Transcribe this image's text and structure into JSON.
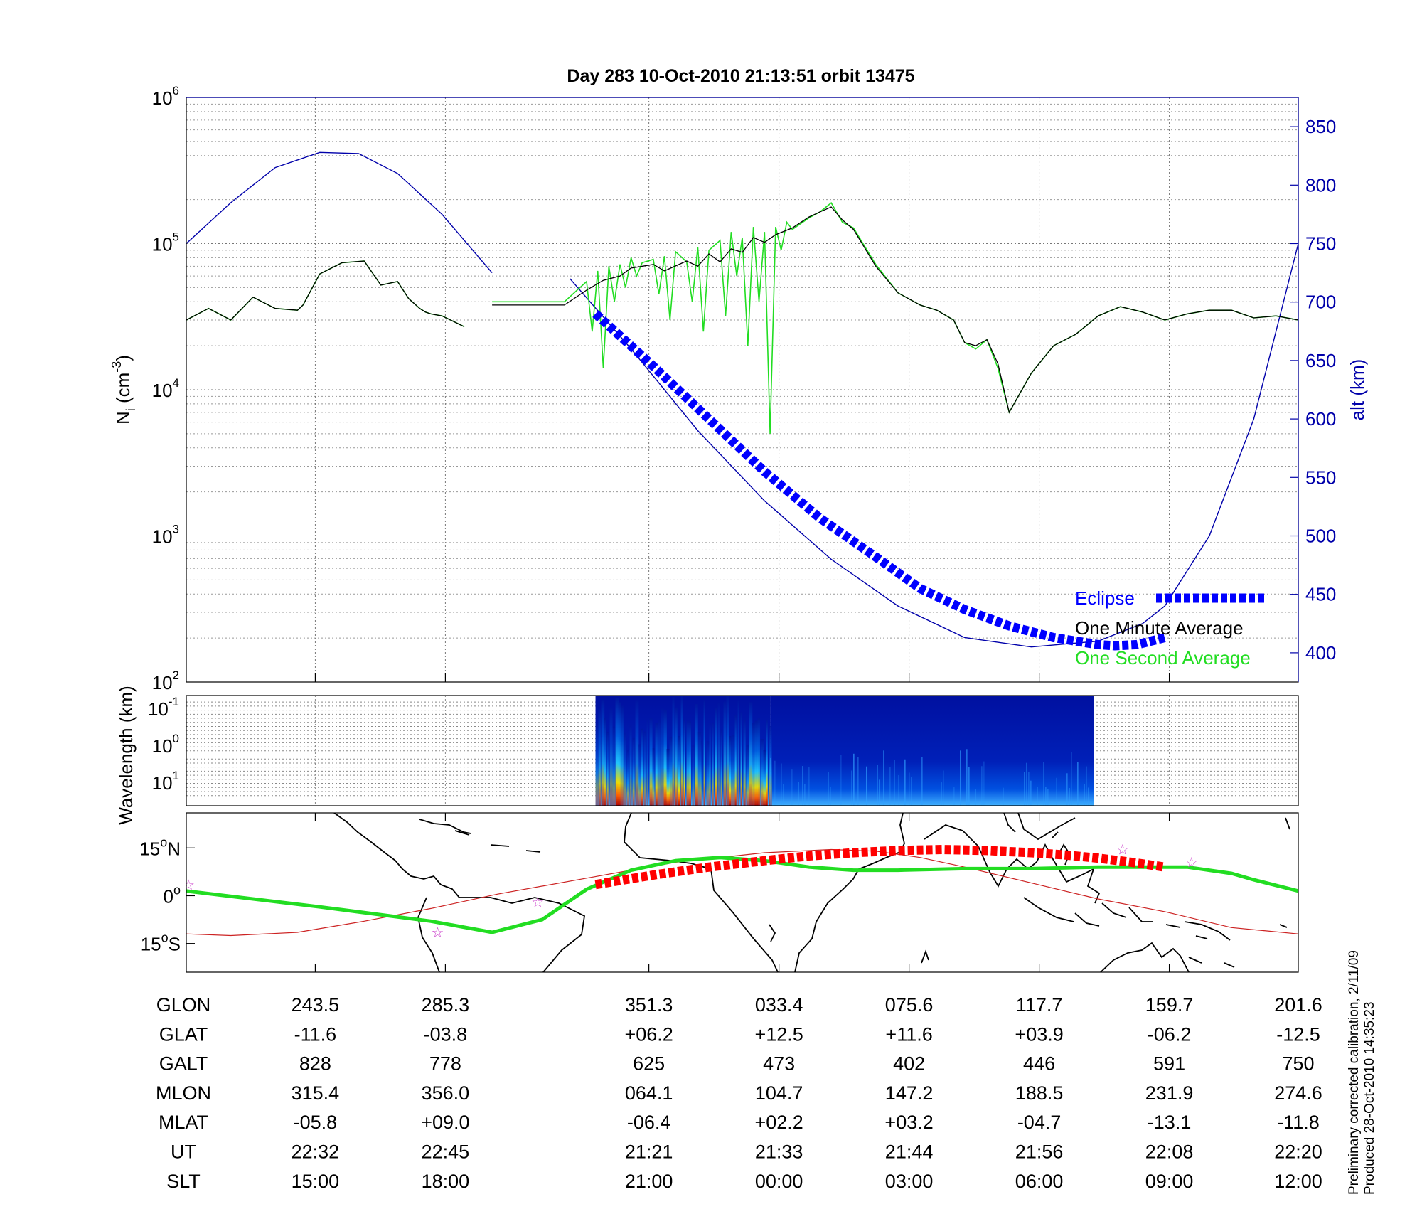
{
  "title": "Day 283  10-Oct-2010 21:13:51   orbit 13475",
  "footer": {
    "line1": "Preliminary corrected calibration, 2/11/09",
    "line2": "Produced 28-Oct-2010 14:35:23"
  },
  "colors": {
    "altitude": "#0000aa",
    "eclipse": "#0000ff",
    "one_minute": "#000000",
    "one_second": "#22dd22",
    "track_eclipse": "#ff0000",
    "star": "#cc44cc"
  },
  "chart_data": [
    {
      "type": "line",
      "panel": "density",
      "ylabel": "N_i (cm^-3)",
      "ylabel_base": "N",
      "ylabel_sub": "i",
      "ylabel_unit": " (cm",
      "ylabel_sup": "-3",
      "ylabel_close": ")",
      "y_scale": "log",
      "ylim": [
        100,
        1000000
      ],
      "y_ticks": [
        {
          "value": 100,
          "base": "10",
          "exp": "2"
        },
        {
          "value": 1000,
          "base": "10",
          "exp": "3"
        },
        {
          "value": 10000,
          "base": "10",
          "exp": "4"
        },
        {
          "value": 100000,
          "base": "10",
          "exp": "5"
        },
        {
          "value": 1000000,
          "base": "10",
          "exp": "6"
        }
      ],
      "y2label": "alt (km)",
      "y2lim": [
        375,
        875
      ],
      "y2_ticks": [
        "400",
        "450",
        "500",
        "550",
        "600",
        "650",
        "700",
        "750",
        "800",
        "850"
      ],
      "grid": true,
      "legend_position": "bottom-right",
      "series": [
        {
          "name": "Eclipse",
          "style": "dashed-thick",
          "x": [
            0.368,
            0.42,
            0.47,
            0.52,
            0.57,
            0.62,
            0.66,
            0.7,
            0.74,
            0.78,
            0.82,
            0.835,
            0.855,
            0.88
          ],
          "y": [
            690,
            645,
            600,
            555,
            515,
            482,
            455,
            437,
            423,
            413,
            407,
            406,
            407,
            413
          ]
        },
        {
          "name": "One Minute Average",
          "x": [
            0.0,
            0.02,
            0.04,
            0.06,
            0.08,
            0.1,
            0.105,
            0.12,
            0.14,
            0.16,
            0.175,
            0.19,
            0.2,
            0.21,
            0.215,
            0.22,
            0.23,
            0.25,
            0.265,
            0.275,
            0.34,
            0.36,
            0.375,
            0.39,
            0.4,
            0.42,
            0.43,
            0.45,
            0.46,
            0.47,
            0.48,
            0.49,
            0.5,
            0.51,
            0.52,
            0.53,
            0.545,
            0.56,
            0.57,
            0.58,
            0.59,
            0.6,
            0.62,
            0.64,
            0.66,
            0.675,
            0.69,
            0.7,
            0.71,
            0.72,
            0.73,
            0.74,
            0.76,
            0.78,
            0.8,
            0.82,
            0.84,
            0.86,
            0.88,
            0.9,
            0.92,
            0.94,
            0.96,
            0.98,
            1.0
          ],
          "y": [
            30000,
            36000,
            30000,
            43000,
            36000,
            35000,
            38000,
            62000,
            74000,
            76000,
            52000,
            55000,
            42000,
            36000,
            34000,
            33000,
            32000,
            27000,
            null,
            38000,
            38000,
            48000,
            56000,
            60000,
            68000,
            72000,
            65000,
            76000,
            70000,
            85000,
            75000,
            92000,
            87000,
            110000,
            102000,
            115000,
            128000,
            152000,
            165000,
            178000,
            145000,
            125000,
            70000,
            46000,
            38000,
            35000,
            30000,
            21000,
            20000,
            22000,
            15000,
            7000,
            13000,
            20000,
            24000,
            32000,
            37000,
            34000,
            30000,
            33000,
            35000,
            35000,
            31000,
            32000,
            30000
          ]
        },
        {
          "name": "One Second Average",
          "x": [
            0.0,
            0.02,
            0.04,
            0.06,
            0.08,
            0.1,
            0.105,
            0.12,
            0.14,
            0.16,
            0.175,
            0.19,
            0.2,
            0.21,
            0.215,
            0.22,
            0.23,
            0.25,
            0.265,
            0.275,
            0.34,
            0.36,
            0.365,
            0.37,
            0.375,
            0.38,
            0.385,
            0.39,
            0.395,
            0.4,
            0.405,
            0.41,
            0.42,
            0.425,
            0.43,
            0.435,
            0.44,
            0.45,
            0.455,
            0.46,
            0.465,
            0.47,
            0.48,
            0.485,
            0.49,
            0.495,
            0.5,
            0.505,
            0.51,
            0.515,
            0.52,
            0.525,
            0.53,
            0.535,
            0.54,
            0.545,
            0.56,
            0.57,
            0.58,
            0.59,
            0.6,
            0.62,
            0.64,
            0.66,
            0.675,
            0.69,
            0.7,
            0.71,
            0.72,
            0.73,
            0.74,
            0.76,
            0.78,
            0.8,
            0.82,
            0.84,
            0.86,
            0.88,
            0.9,
            0.92,
            0.94,
            0.96,
            0.98,
            1.0
          ],
          "y": [
            30000,
            36000,
            30000,
            43000,
            36000,
            35000,
            38000,
            62000,
            74000,
            76000,
            52000,
            55000,
            42000,
            36000,
            34000,
            33000,
            32000,
            27000,
            null,
            40000,
            40000,
            55000,
            25000,
            65000,
            14000,
            70000,
            40000,
            72000,
            50000,
            80000,
            60000,
            74000,
            78000,
            45000,
            82000,
            30000,
            88000,
            75000,
            40000,
            95000,
            25000,
            90000,
            105000,
            32000,
            120000,
            60000,
            110000,
            20000,
            130000,
            40000,
            120000,
            5000,
            130000,
            90000,
            140000,
            125000,
            150000,
            165000,
            190000,
            140000,
            128000,
            72000,
            46000,
            38000,
            35000,
            30000,
            21000,
            19000,
            22000,
            14000,
            7000,
            13000,
            20000,
            24000,
            32000,
            37000,
            34000,
            30000,
            33000,
            35000,
            35000,
            31000,
            32000,
            30000
          ]
        },
        {
          "name": "alt (km)",
          "axis": "right",
          "x": [
            0.0,
            0.04,
            0.08,
            0.12,
            0.155,
            0.19,
            0.23,
            0.275,
            null,
            0.345,
            0.4,
            0.46,
            0.52,
            0.58,
            0.64,
            0.7,
            0.76,
            0.82,
            0.86,
            0.88,
            0.92,
            0.96,
            1.0
          ],
          "y": [
            750,
            785,
            815,
            828,
            827,
            810,
            775,
            725,
            null,
            720,
            660,
            590,
            530,
            480,
            440,
            413,
            405,
            410,
            425,
            440,
            500,
            600,
            750
          ]
        }
      ],
      "legend": [
        {
          "label": "Eclipse",
          "color": "#0000ff"
        },
        {
          "label": "One Minute Average",
          "color": "#000000"
        },
        {
          "label": "One Second Average",
          "color": "#22dd22"
        }
      ]
    },
    {
      "type": "heatmap",
      "panel": "spectrogram",
      "ylabel": "Wavelength (km)",
      "y_scale": "log",
      "y_ticks": [
        {
          "value": 0.1,
          "base": "10",
          "exp": "-1"
        },
        {
          "value": 1,
          "base": "10",
          "exp": "0"
        },
        {
          "value": 10,
          "base": "10",
          "exp": "1"
        }
      ],
      "x_extent": [
        0.368,
        0.816
      ],
      "active_until": 0.525
    },
    {
      "type": "line",
      "panel": "ground_track",
      "y_ticks": [
        {
          "deg": "15",
          "hemi": "N",
          "value": 15
        },
        {
          "deg": "0",
          "hemi": "",
          "value": 0
        },
        {
          "deg": "15",
          "hemi": "S",
          "value": -15
        }
      ],
      "ylim": [
        -24,
        26
      ],
      "series": [
        {
          "name": "Ground track",
          "x": [
            0.0,
            0.12,
            0.22,
            0.275,
            0.32,
            0.36,
            0.4,
            0.44,
            0.48,
            0.52,
            0.56,
            0.6,
            0.64,
            0.7,
            0.76,
            0.82,
            0.86,
            0.9,
            0.94,
            0.96,
            1.0
          ],
          "y": [
            1.5,
            -3.5,
            -8,
            -11.5,
            -7.5,
            2,
            8,
            11,
            12,
            11,
            9,
            8,
            8,
            8.5,
            8.5,
            9,
            9,
            9,
            7,
            5,
            1.5
          ]
        },
        {
          "name": "Magnetic equator",
          "x": [
            0.0,
            0.04,
            0.1,
            0.16,
            0.22,
            0.28,
            0.36,
            0.44,
            0.52,
            0.58,
            0.62,
            0.66,
            0.7,
            0.76,
            0.82,
            0.88,
            0.94,
            1.0
          ],
          "y": [
            -12,
            -12.5,
            -11.5,
            -8,
            -4,
            0.5,
            5.5,
            10.5,
            13.5,
            14.5,
            14,
            12,
            9,
            4,
            -1,
            -5,
            -10,
            -12
          ]
        },
        {
          "name": "Eclipse track",
          "x": [
            0.368,
            0.42,
            0.47,
            0.52,
            0.56,
            0.6,
            0.64,
            0.68,
            0.72,
            0.76,
            0.79,
            0.82,
            0.85,
            0.88
          ],
          "y": [
            3.5,
            6.5,
            9,
            11,
            12.5,
            13.5,
            14.2,
            14.5,
            14.2,
            13.5,
            12.8,
            11.8,
            10.5,
            9
          ]
        }
      ],
      "stars": [
        {
          "x": 0.002,
          "y": 3.5
        },
        {
          "x": 0.226,
          "y": -11.5
        },
        {
          "x": 0.316,
          "y": -2
        },
        {
          "x": 0.842,
          "y": 14.5
        },
        {
          "x": 0.904,
          "y": 10.5
        }
      ]
    }
  ],
  "table": {
    "labels": [
      "GLON",
      "GLAT",
      "GALT",
      "MLON",
      "MLAT",
      "UT",
      "SLT"
    ],
    "columns": [
      {
        "x": 0.116,
        "values": [
          "243.5",
          "-11.6",
          "828",
          "315.4",
          "-05.8",
          "22:32",
          "15:00"
        ]
      },
      {
        "x": 0.233,
        "values": [
          "285.3",
          "-03.8",
          "778",
          "356.0",
          "+09.0",
          "22:45",
          "18:00"
        ]
      },
      {
        "x": 0.416,
        "values": [
          "351.3",
          "+06.2",
          "625",
          "064.1",
          "-06.4",
          "21:21",
          "21:00"
        ]
      },
      {
        "x": 0.533,
        "values": [
          "033.4",
          "+12.5",
          "473",
          "104.7",
          "+02.2",
          "21:33",
          "00:00"
        ]
      },
      {
        "x": 0.65,
        "values": [
          "075.6",
          "+11.6",
          "402",
          "147.2",
          "+03.2",
          "21:44",
          "03:00"
        ]
      },
      {
        "x": 0.767,
        "values": [
          "117.7",
          "+03.9",
          "446",
          "188.5",
          "-04.7",
          "21:56",
          "06:00"
        ]
      },
      {
        "x": 0.884,
        "values": [
          "159.7",
          "-06.2",
          "591",
          "231.9",
          "-13.1",
          "22:08",
          "09:00"
        ]
      },
      {
        "x": 1.0,
        "values": [
          "201.6",
          "-12.5",
          "750",
          "274.6",
          "-11.8",
          "22:20",
          "12:00"
        ]
      }
    ]
  },
  "x_gridlines": [
    0.116,
    0.233,
    0.416,
    0.533,
    0.65,
    0.767,
    0.884
  ]
}
